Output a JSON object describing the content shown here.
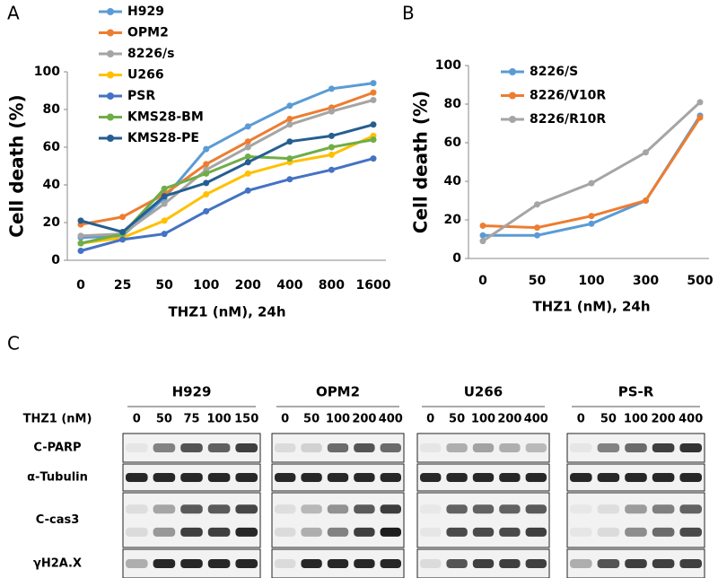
{
  "chart_data": [
    {
      "type": "line",
      "ylabel": "Cell death (%)",
      "xlabel": "THZ1 (nM), 24h",
      "categories": [
        "0",
        "25",
        "50",
        "100",
        "200",
        "400",
        "800",
        "1600"
      ],
      "ylim": [
        0,
        100
      ],
      "yticks": [
        0,
        20,
        40,
        60,
        80,
        100
      ],
      "legend": "upper left",
      "series": [
        {
          "name": "H929",
          "color": "#5b9bd5",
          "values": [
            12,
            13,
            33,
            59,
            71,
            82,
            91,
            94
          ]
        },
        {
          "name": "OPM2",
          "color": "#ed7d31",
          "values": [
            19,
            23,
            35,
            51,
            63,
            75,
            81,
            89
          ]
        },
        {
          "name": "8226/s",
          "color": "#a5a5a5",
          "values": [
            13,
            14,
            30,
            48,
            60,
            72,
            79,
            85
          ]
        },
        {
          "name": "U266",
          "color": "#ffc000",
          "values": [
            9,
            12,
            21,
            35,
            46,
            52,
            56,
            66
          ]
        },
        {
          "name": "PSR",
          "color": "#4472c4",
          "values": [
            5,
            11,
            14,
            26,
            37,
            43,
            48,
            54
          ]
        },
        {
          "name": "KMS28-BM",
          "color": "#70ad47",
          "values": [
            9,
            14,
            38,
            46,
            55,
            54,
            60,
            64
          ]
        },
        {
          "name": "KMS28-PE",
          "color": "#255e91",
          "values": [
            21,
            15,
            34,
            41,
            52,
            63,
            66,
            72
          ]
        }
      ]
    },
    {
      "type": "line",
      "ylabel": "Cell death (%)",
      "xlabel": "THZ1 (nM), 24h",
      "categories": [
        "0",
        "50",
        "100",
        "300",
        "500"
      ],
      "ylim": [
        0,
        100
      ],
      "yticks": [
        0,
        20,
        40,
        60,
        80,
        100
      ],
      "legend": "upper left",
      "series": [
        {
          "name": "8226/S",
          "color": "#5b9bd5",
          "values": [
            12,
            12,
            18,
            30,
            74
          ]
        },
        {
          "name": "8226/V10R",
          "color": "#ed7d31",
          "values": [
            17,
            16,
            22,
            30,
            73
          ]
        },
        {
          "name": "8226/R10R",
          "color": "#a5a5a5",
          "values": [
            9,
            28,
            39,
            55,
            81
          ]
        }
      ]
    }
  ],
  "panels": [
    "A",
    "B",
    "C"
  ],
  "blot": {
    "treatment_label": "THZ1 (nM)",
    "groups": [
      {
        "name": "H929",
        "doses": [
          0,
          50,
          75,
          100,
          150
        ]
      },
      {
        "name": "OPM2",
        "doses": [
          0,
          50,
          100,
          200,
          400
        ]
      },
      {
        "name": "U266",
        "doses": [
          0,
          50,
          100,
          200,
          400
        ]
      },
      {
        "name": "PS-R",
        "doses": [
          0,
          50,
          100,
          200,
          400
        ]
      }
    ],
    "rows": [
      "C-PARP",
      "α-Tubulin",
      "C-cas3",
      "γH2A.X"
    ]
  }
}
